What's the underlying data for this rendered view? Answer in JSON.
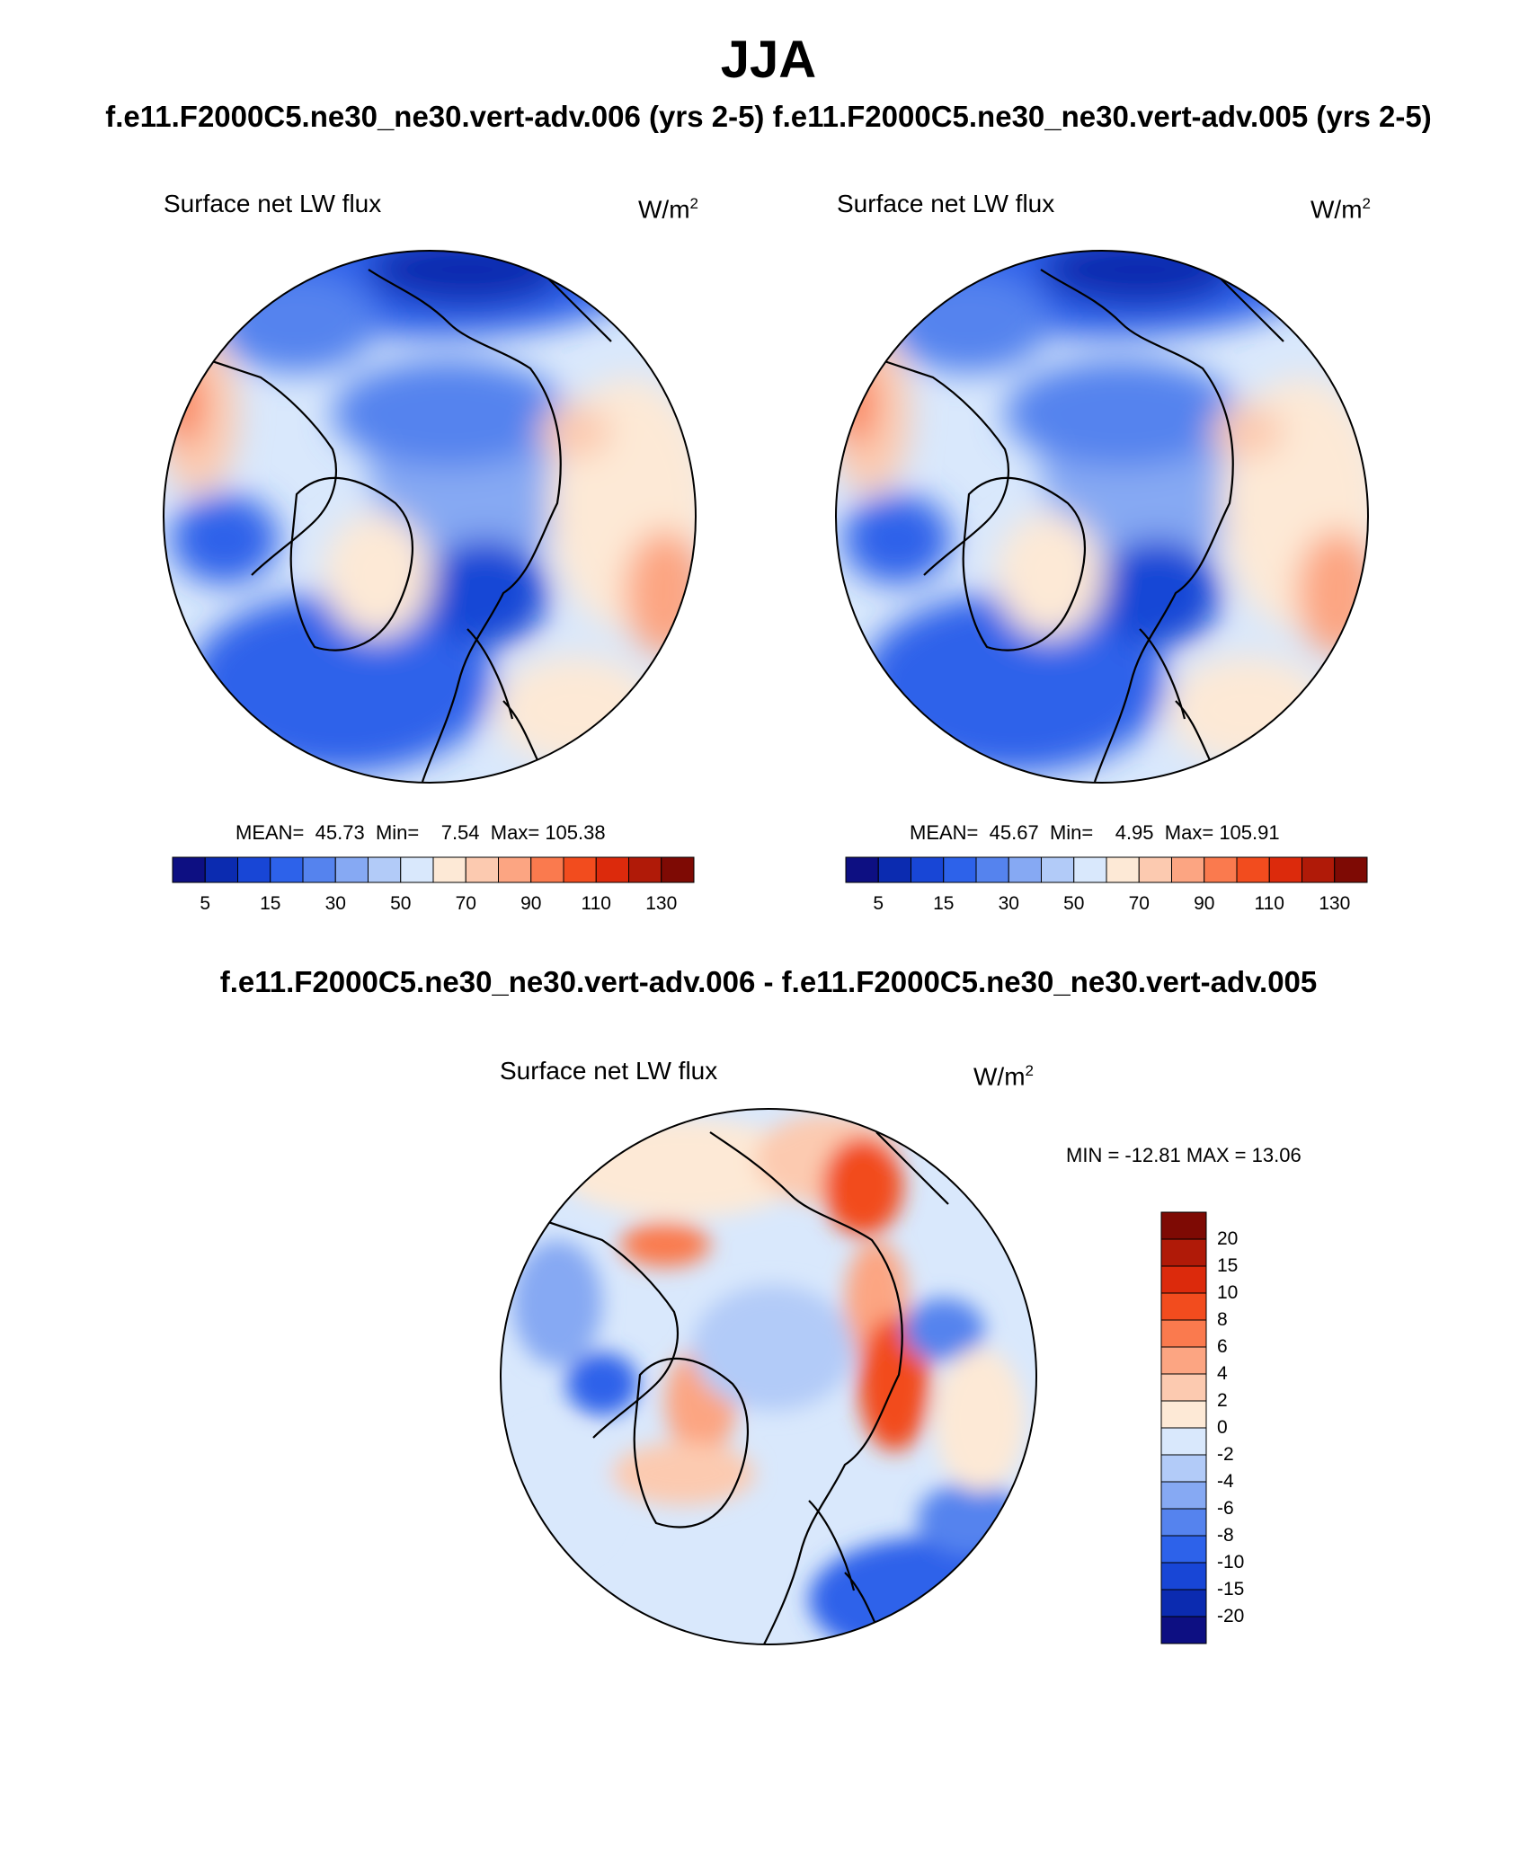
{
  "season": "JJA",
  "cases_title": "f.e11.F2000C5.ne30_ne30.vert-adv.006 (yrs 2-5)  f.e11.F2000C5.ne30_ne30.vert-adv.005 (yrs 2-5)",
  "diff_title": "f.e11.F2000C5.ne30_ne30.vert-adv.006 - f.e11.F2000C5.ne30_ne30.vert-adv.005",
  "variable": "Surface net LW flux",
  "units_base": "W/m",
  "units_exp": "2",
  "panels": [
    {
      "case": "f.e11.F2000C5.ne30_ne30.vert-adv.006",
      "stats": {
        "mean_label": "MEAN=",
        "mean": "45.73",
        "min_label": "Min=",
        "min": "7.54",
        "max_label": "Max=",
        "max": "105.38"
      }
    },
    {
      "case": "f.e11.F2000C5.ne30_ne30.vert-adv.005",
      "stats": {
        "mean_label": "MEAN=",
        "mean": "45.67",
        "min_label": "Min=",
        "min": "4.95",
        "max_label": "Max=",
        "max": "105.91"
      }
    }
  ],
  "diff_panel": {
    "stats_text": "MIN = -12.81 MAX =  13.06"
  },
  "colorbar_main": {
    "colors": [
      "#0d0f82",
      "#0b2bb0",
      "#1846d6",
      "#2d62ea",
      "#5583ee",
      "#86a9f3",
      "#b2cbf8",
      "#d9e8fc",
      "#fde9d6",
      "#fccab0",
      "#fca582",
      "#fa7a4e",
      "#f24c1e",
      "#dc2a0c",
      "#b01a08",
      "#7e0a04"
    ],
    "tick_labels": [
      "5",
      "15",
      "30",
      "50",
      "70",
      "90",
      "110",
      "130"
    ]
  },
  "colorbar_diff": {
    "colors": [
      "#7e0a04",
      "#b01a08",
      "#dc2a0c",
      "#f24c1e",
      "#fa7a4e",
      "#fca582",
      "#fccab0",
      "#fde9d6",
      "#d9e8fc",
      "#b2cbf8",
      "#86a9f3",
      "#5583ee",
      "#2d62ea",
      "#1846d6",
      "#0b2bb0",
      "#0d0f82"
    ],
    "tick_labels": [
      "20",
      "15",
      "10",
      "8",
      "6",
      "4",
      "2",
      "0",
      "-2",
      "-4",
      "-6",
      "-8",
      "-10",
      "-15",
      "-20"
    ]
  },
  "map_fields": {
    "case_006": {
      "colormap": "blue-white-red",
      "arctic_ocean": "moderate blue",
      "greenland": "light",
      "north_atlantic": "blue",
      "north_pacific_rim": "light red"
    },
    "case_005": {
      "colormap": "blue-white-red",
      "arctic_ocean": "moderate blue",
      "greenland": "light",
      "north_atlantic": "blue",
      "north_pacific_rim": "light red"
    },
    "difference": {
      "colormap": "red-white-blue",
      "siberia": "red",
      "north_atlantic": "blue",
      "arctic_ocean": "near zero"
    }
  }
}
